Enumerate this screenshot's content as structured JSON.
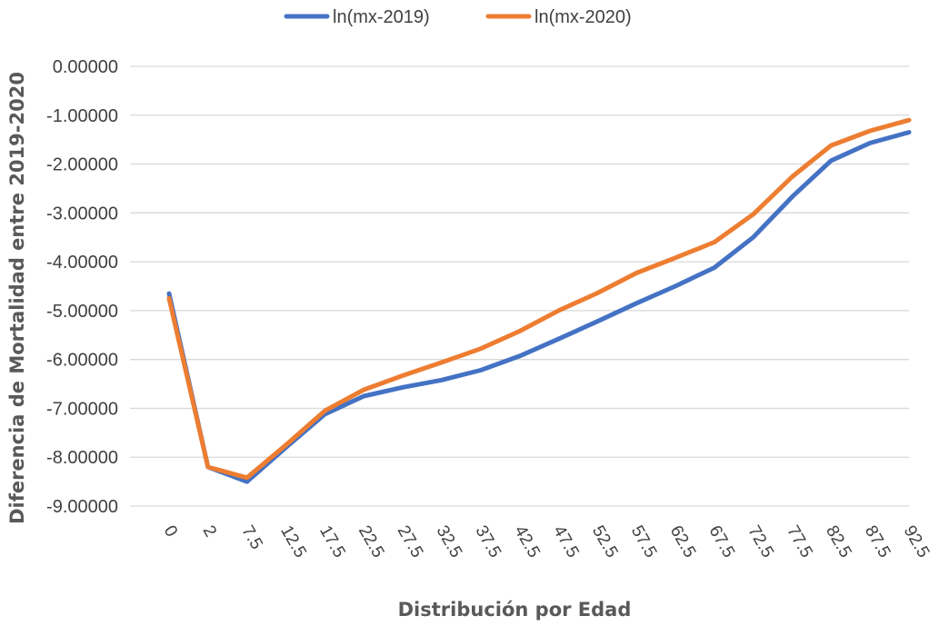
{
  "chart_data": {
    "type": "line",
    "title": "",
    "xlabel": "Distribución por Edad",
    "ylabel": "Diferencia de Mortalidad entre 2019-2020",
    "categories": [
      "0",
      "2",
      "7.5",
      "12.5",
      "17.5",
      "22.5",
      "27.5",
      "32.5",
      "37.5",
      "42.5",
      "47.5",
      "52.5",
      "57.5",
      "62.5",
      "67.5",
      "72.5",
      "77.5",
      "82.5",
      "87.5",
      "92.5"
    ],
    "y_ticks": [
      "0.00000",
      "-1.00000",
      "-2.00000",
      "-3.00000",
      "-4.00000",
      "-5.00000",
      "-6.00000",
      "-7.00000",
      "-8.00000",
      "-9.00000"
    ],
    "ylim": [
      -9,
      0
    ],
    "grid": true,
    "legend_position": "top",
    "series": [
      {
        "name": "ln(mx-2019)",
        "color": "#4472c4",
        "values": [
          -4.65,
          -8.2,
          -8.5,
          -7.8,
          -7.12,
          -6.75,
          -6.57,
          -6.42,
          -6.22,
          -5.93,
          -5.58,
          -5.22,
          -4.85,
          -4.5,
          -4.12,
          -3.5,
          -2.67,
          -1.93,
          -1.57,
          -1.35
        ]
      },
      {
        "name": "ln(mx-2020)",
        "color": "#ed7d31",
        "values": [
          -4.75,
          -8.2,
          -8.42,
          -7.75,
          -7.05,
          -6.62,
          -6.33,
          -6.06,
          -5.78,
          -5.42,
          -5.0,
          -4.64,
          -4.23,
          -3.92,
          -3.6,
          -3.03,
          -2.26,
          -1.62,
          -1.32,
          -1.1
        ]
      }
    ]
  }
}
